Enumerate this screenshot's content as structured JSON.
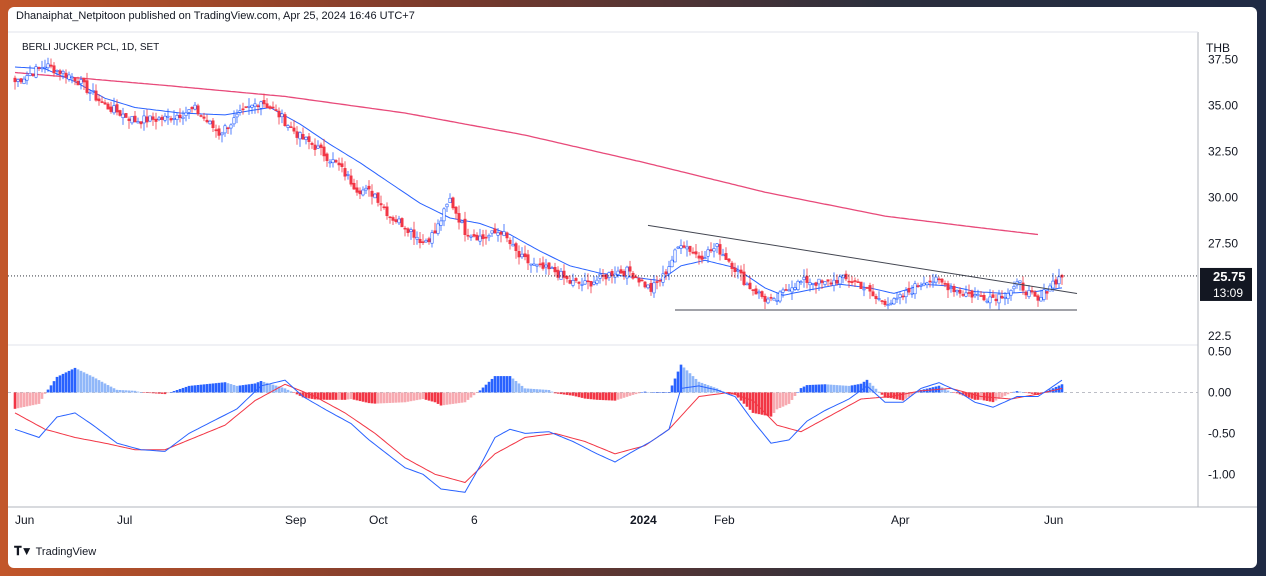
{
  "header": {
    "published_by": "Dhanaiphat_Netpitoon published on TradingView.com, Apr 25, 2024 16:46 UTC+7"
  },
  "footer": {
    "brand": "TradingView",
    "logo_icon": "tradingview-logo-icon"
  },
  "colors": {
    "up": "#2962ff",
    "down": "#f23645",
    "ema_fast": "#2962ff",
    "ema_slow": "#e84a7a",
    "hist_up_strong": "#2962ff",
    "hist_up_weak": "#90b7f9",
    "hist_down_strong": "#f23645",
    "hist_down_weak": "#f7a9b0",
    "macd_line": "#2962ff",
    "signal_line": "#f23645",
    "trendline": "#434651"
  },
  "chart_data": [
    {
      "type": "candlestick",
      "title": "BERLI JUCKER PCL, 1D, SET",
      "currency": "THB",
      "ylim": [
        22,
        39
      ],
      "yticks": [
        "37.50",
        "35.00",
        "32.50",
        "30.00",
        "27.50",
        "22.5"
      ],
      "ytick_values": [
        37.5,
        35.0,
        32.5,
        30.0,
        27.5,
        22.5
      ],
      "last_price": "25.75",
      "time_to_close": "13:09",
      "x_labels": [
        "Jun",
        "Jul",
        "Sep",
        "Oct",
        "6",
        "2024",
        "Feb",
        "Apr",
        "Jun"
      ],
      "x_label_bold": "2024",
      "close_anchors": [
        [
          0,
          36.3
        ],
        [
          10,
          37.2
        ],
        [
          20,
          36.5
        ],
        [
          30,
          35.0
        ],
        [
          40,
          34.2
        ],
        [
          50,
          34.3
        ],
        [
          60,
          34.8
        ],
        [
          68,
          33.5
        ],
        [
          75,
          34.5
        ],
        [
          82,
          35.3
        ],
        [
          88,
          34.5
        ],
        [
          95,
          33.3
        ],
        [
          100,
          32.8
        ],
        [
          108,
          31.7
        ],
        [
          114,
          30.5
        ],
        [
          120,
          30.2
        ],
        [
          125,
          29.0
        ],
        [
          130,
          28.5
        ],
        [
          136,
          27.6
        ],
        [
          140,
          28.1
        ],
        [
          145,
          29.9
        ],
        [
          150,
          28.2
        ],
        [
          156,
          27.8
        ],
        [
          162,
          28.2
        ],
        [
          168,
          26.8
        ],
        [
          174,
          26.2
        ],
        [
          180,
          26.0
        ],
        [
          185,
          25.4
        ],
        [
          190,
          25.3
        ],
        [
          195,
          25.6
        ],
        [
          200,
          26.0
        ],
        [
          205,
          26.0
        ],
        [
          212,
          25.0
        ],
        [
          216,
          25.7
        ],
        [
          222,
          27.6
        ],
        [
          228,
          26.8
        ],
        [
          234,
          27.3
        ],
        [
          238,
          26.6
        ],
        [
          244,
          25.3
        ],
        [
          250,
          24.5
        ],
        [
          253,
          24.3
        ],
        [
          258,
          25.2
        ],
        [
          264,
          25.5
        ],
        [
          270,
          25.3
        ],
        [
          275,
          25.6
        ],
        [
          281,
          25.4
        ],
        [
          287,
          24.5
        ],
        [
          293,
          24.3
        ],
        [
          298,
          24.9
        ],
        [
          304,
          25.6
        ],
        [
          310,
          25.3
        ],
        [
          315,
          24.9
        ],
        [
          320,
          24.7
        ],
        [
          326,
          24.6
        ],
        [
          330,
          24.8
        ],
        [
          335,
          25.3
        ],
        [
          341,
          24.3
        ],
        [
          345,
          25.3
        ],
        [
          349,
          25.75
        ]
      ],
      "ema_fast_anchors": [
        [
          0,
          37.1
        ],
        [
          10,
          37.0
        ],
        [
          20,
          36.3
        ],
        [
          30,
          35.4
        ],
        [
          40,
          34.9
        ],
        [
          55,
          34.6
        ],
        [
          70,
          34.5
        ],
        [
          85,
          34.9
        ],
        [
          95,
          34.0
        ],
        [
          105,
          32.9
        ],
        [
          115,
          31.9
        ],
        [
          125,
          30.8
        ],
        [
          135,
          29.7
        ],
        [
          145,
          28.9
        ],
        [
          155,
          28.6
        ],
        [
          165,
          28.0
        ],
        [
          175,
          27.1
        ],
        [
          185,
          26.3
        ],
        [
          195,
          25.9
        ],
        [
          205,
          25.7
        ],
        [
          215,
          25.5
        ],
        [
          222,
          26.3
        ],
        [
          230,
          26.6
        ],
        [
          240,
          26.2
        ],
        [
          250,
          25.1
        ],
        [
          256,
          24.7
        ],
        [
          265,
          25.0
        ],
        [
          275,
          25.3
        ],
        [
          285,
          25.1
        ],
        [
          293,
          24.8
        ],
        [
          303,
          25.3
        ],
        [
          312,
          25.2
        ],
        [
          320,
          24.9
        ],
        [
          330,
          24.8
        ],
        [
          340,
          24.9
        ],
        [
          349,
          25.1
        ]
      ],
      "ema_slow_anchors": [
        [
          0,
          36.8
        ],
        [
          50,
          36.1
        ],
        [
          90,
          35.5
        ],
        [
          130,
          34.6
        ],
        [
          170,
          33.4
        ],
        [
          210,
          31.9
        ],
        [
          250,
          30.3
        ],
        [
          290,
          29.0
        ],
        [
          320,
          28.4
        ],
        [
          341,
          28.0
        ]
      ],
      "trendlines": [
        {
          "from": [
            211,
            28.5
          ],
          "to": [
            354,
            24.8
          ]
        },
        {
          "from": [
            220,
            23.9
          ],
          "to": [
            354,
            23.9
          ]
        }
      ],
      "last_bars": 350
    },
    {
      "type": "macd",
      "ylim": [
        -1.4,
        0.58
      ],
      "yticks": [
        "0.50",
        "0.00",
        "-0.50",
        "-1.00"
      ],
      "ytick_values": [
        0.5,
        0.0,
        -0.5,
        -1.0
      ],
      "macd_anchors": [
        [
          0,
          -0.45
        ],
        [
          8,
          -0.55
        ],
        [
          14,
          -0.3
        ],
        [
          20,
          -0.25
        ],
        [
          26,
          -0.4
        ],
        [
          34,
          -0.62
        ],
        [
          42,
          -0.7
        ],
        [
          50,
          -0.72
        ],
        [
          58,
          -0.5
        ],
        [
          66,
          -0.35
        ],
        [
          74,
          -0.2
        ],
        [
          82,
          0.08
        ],
        [
          90,
          0.15
        ],
        [
          96,
          -0.05
        ],
        [
          104,
          -0.22
        ],
        [
          112,
          -0.38
        ],
        [
          118,
          -0.58
        ],
        [
          124,
          -0.75
        ],
        [
          130,
          -0.92
        ],
        [
          136,
          -1.0
        ],
        [
          142,
          -1.18
        ],
        [
          150,
          -1.22
        ],
        [
          155,
          -0.9
        ],
        [
          160,
          -0.55
        ],
        [
          165,
          -0.45
        ],
        [
          170,
          -0.5
        ],
        [
          178,
          -0.48
        ],
        [
          186,
          -0.6
        ],
        [
          194,
          -0.75
        ],
        [
          200,
          -0.85
        ],
        [
          206,
          -0.72
        ],
        [
          212,
          -0.6
        ],
        [
          218,
          -0.45
        ],
        [
          222,
          0.05
        ],
        [
          228,
          0.08
        ],
        [
          234,
          0.03
        ],
        [
          240,
          -0.05
        ],
        [
          246,
          -0.35
        ],
        [
          252,
          -0.62
        ],
        [
          258,
          -0.58
        ],
        [
          264,
          -0.35
        ],
        [
          270,
          -0.22
        ],
        [
          278,
          -0.08
        ],
        [
          284,
          0.08
        ],
        [
          290,
          -0.12
        ],
        [
          296,
          -0.12
        ],
        [
          302,
          0.05
        ],
        [
          308,
          0.12
        ],
        [
          314,
          0.02
        ],
        [
          320,
          -0.12
        ],
        [
          326,
          -0.18
        ],
        [
          334,
          -0.05
        ],
        [
          341,
          -0.05
        ],
        [
          349,
          0.15
        ]
      ],
      "signal_anchors": [
        [
          0,
          -0.25
        ],
        [
          10,
          -0.45
        ],
        [
          20,
          -0.55
        ],
        [
          30,
          -0.62
        ],
        [
          40,
          -0.7
        ],
        [
          50,
          -0.7
        ],
        [
          60,
          -0.55
        ],
        [
          70,
          -0.4
        ],
        [
          80,
          -0.1
        ],
        [
          90,
          0.1
        ],
        [
          100,
          -0.05
        ],
        [
          110,
          -0.25
        ],
        [
          120,
          -0.5
        ],
        [
          130,
          -0.8
        ],
        [
          140,
          -1.0
        ],
        [
          150,
          -1.1
        ],
        [
          160,
          -0.75
        ],
        [
          170,
          -0.55
        ],
        [
          180,
          -0.5
        ],
        [
          190,
          -0.6
        ],
        [
          200,
          -0.75
        ],
        [
          210,
          -0.65
        ],
        [
          218,
          -0.45
        ],
        [
          228,
          -0.05
        ],
        [
          238,
          0.0
        ],
        [
          246,
          -0.1
        ],
        [
          254,
          -0.4
        ],
        [
          262,
          -0.48
        ],
        [
          272,
          -0.28
        ],
        [
          282,
          -0.08
        ],
        [
          292,
          -0.05
        ],
        [
          302,
          0.02
        ],
        [
          312,
          0.05
        ],
        [
          322,
          -0.05
        ],
        [
          332,
          -0.08
        ],
        [
          341,
          -0.02
        ],
        [
          349,
          0.05
        ]
      ],
      "hist_up_color": "#2962ff",
      "hist_down_color": "#f23645"
    }
  ]
}
